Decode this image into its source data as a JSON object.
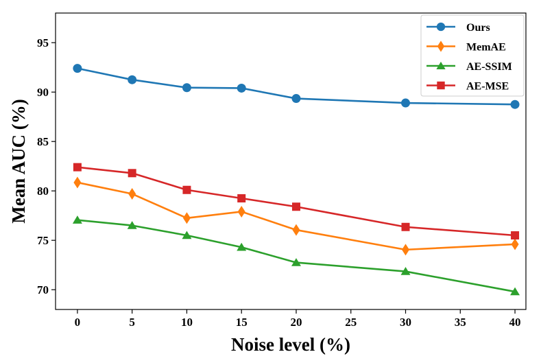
{
  "chart_data": {
    "type": "line",
    "xlabel": "Noise level (%)",
    "ylabel": "Mean AUC (%)",
    "x": [
      0,
      5,
      10,
      15,
      20,
      30,
      40
    ],
    "xlim": [
      -2,
      41
    ],
    "ylim": [
      68,
      98
    ],
    "xticks": [
      0,
      5,
      10,
      15,
      20,
      25,
      30,
      35,
      40
    ],
    "yticks": [
      70,
      75,
      80,
      85,
      90,
      95
    ],
    "legend_position": "top-right",
    "series": [
      {
        "name": "Ours",
        "marker": "circle",
        "color": "#1f77b4",
        "values": [
          92.4,
          91.25,
          90.45,
          90.4,
          89.35,
          88.9,
          88.75
        ]
      },
      {
        "name": "MemAE",
        "marker": "diamond",
        "color": "#ff7f0e",
        "values": [
          80.85,
          79.7,
          77.25,
          77.9,
          76.05,
          74.05,
          74.6
        ]
      },
      {
        "name": "AE-SSIM",
        "marker": "triangle",
        "color": "#2ca02c",
        "values": [
          77.05,
          76.5,
          75.5,
          74.3,
          72.75,
          71.85,
          69.8
        ]
      },
      {
        "name": "AE-MSE",
        "marker": "square",
        "color": "#d62728",
        "values": [
          82.4,
          81.8,
          80.1,
          79.25,
          78.4,
          76.35,
          75.5
        ]
      }
    ]
  }
}
